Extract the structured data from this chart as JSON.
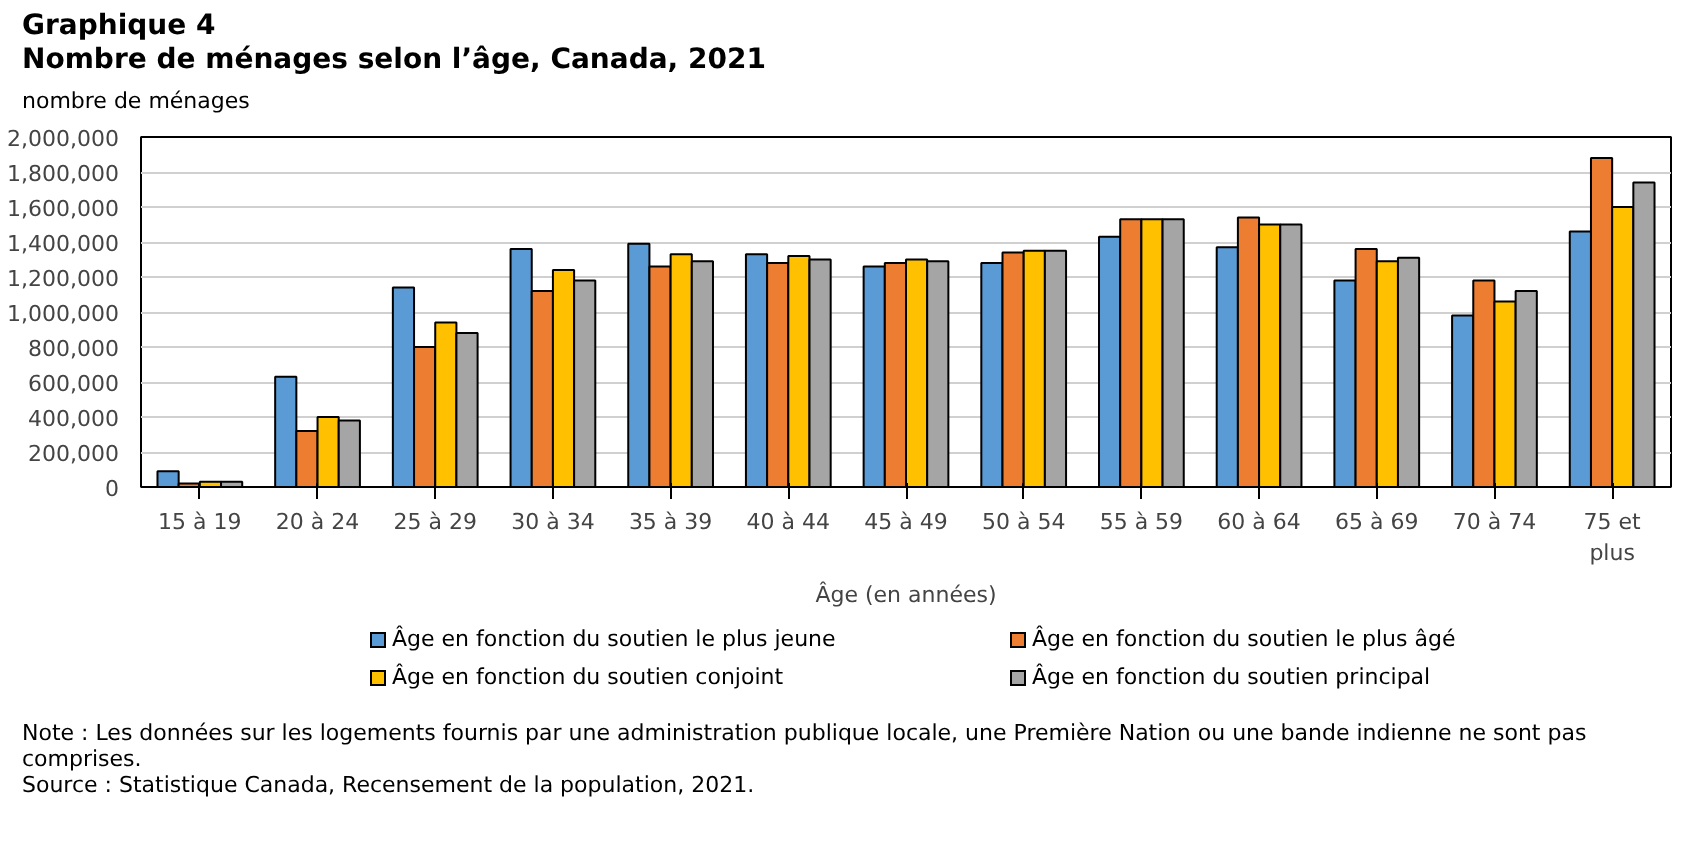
{
  "chart_data": {
    "type": "bar",
    "title": "Graphique 4",
    "subtitle": "Nombre de ménages selon l’âge, Canada, 2021",
    "xlabel": "Âge (en années)",
    "ylabel": "nombre de ménages",
    "categories": [
      "15 à 19",
      "20 à 24",
      "25 à 29",
      "30 à 34",
      "35 à 39",
      "40 à 44",
      "45 à 49",
      "50 à 54",
      "55 à 59",
      "60 à 64",
      "65 à 69",
      "70 à 74",
      "75 et plus"
    ],
    "series": [
      {
        "name": "Âge en fonction du soutien le plus jeune",
        "color": "#5b9bd5",
        "values": [
          90000,
          630000,
          1140000,
          1360000,
          1390000,
          1330000,
          1260000,
          1280000,
          1430000,
          1370000,
          1180000,
          980000,
          1460000
        ]
      },
      {
        "name": "Âge en fonction du soutien le plus âgé",
        "color": "#ed7d31",
        "values": [
          20000,
          320000,
          800000,
          1120000,
          1260000,
          1280000,
          1280000,
          1340000,
          1530000,
          1540000,
          1360000,
          1180000,
          1880000
        ]
      },
      {
        "name": "Âge en fonction du soutien conjoint",
        "color": "#ffc000",
        "values": [
          30000,
          400000,
          940000,
          1240000,
          1330000,
          1320000,
          1300000,
          1350000,
          1530000,
          1500000,
          1290000,
          1060000,
          1600000
        ]
      },
      {
        "name": "Âge en fonction du soutien principal",
        "color": "#a5a5a5",
        "values": [
          30000,
          380000,
          880000,
          1180000,
          1290000,
          1300000,
          1290000,
          1350000,
          1530000,
          1500000,
          1310000,
          1120000,
          1740000
        ]
      }
    ],
    "ylim": [
      0,
      2000000
    ],
    "yticks": [
      {
        "value": 0,
        "label": "0"
      },
      {
        "value": 200000,
        "label": "200,000"
      },
      {
        "value": 400000,
        "label": "400,000"
      },
      {
        "value": 600000,
        "label": "600,000"
      },
      {
        "value": 800000,
        "label": "800,000"
      },
      {
        "value": 1000000,
        "label": "1,000,000"
      },
      {
        "value": 1200000,
        "label": "1,200,000"
      },
      {
        "value": 1400000,
        "label": "1,400,000"
      },
      {
        "value": 1600000,
        "label": "1,600,000"
      },
      {
        "value": 1800000,
        "label": "1,800,000"
      },
      {
        "value": 2000000,
        "label": "2,000,000"
      }
    ],
    "grid": "y",
    "legend": "bottom",
    "annotations": [
      "Note : Les données sur les logements fournis par une administration publique locale, une Première Nation ou une bande indienne ne sont pas comprises.",
      "Source : Statistique Canada, Recensement de la population, 2021."
    ]
  }
}
